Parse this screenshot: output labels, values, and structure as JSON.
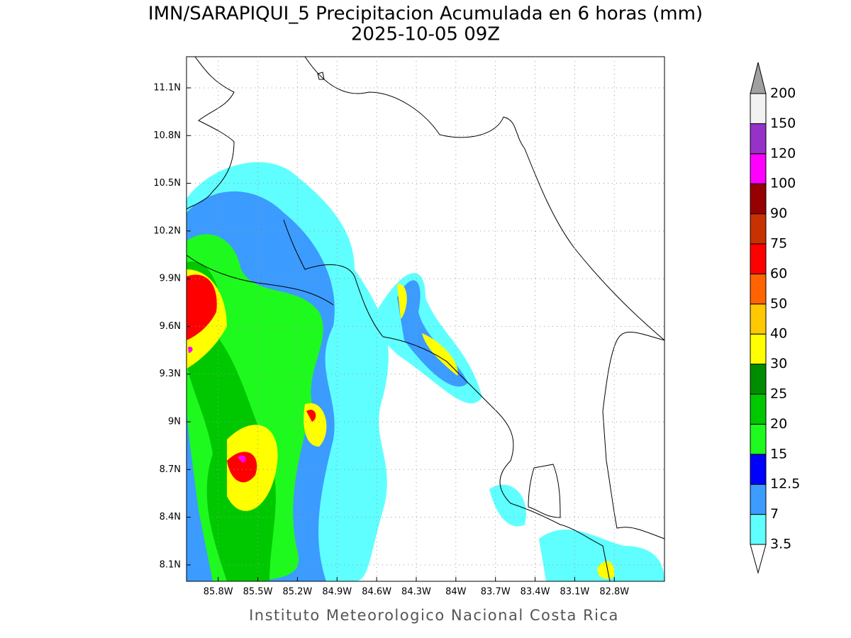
{
  "title": "IMN/SARAPIQUI_5 Precipitacion Acumulada en 6 horas (mm)",
  "subtitle": "2025-10-05 09Z",
  "footer": "Instituto Meteorologico Nacional Costa Rica",
  "map": {
    "xlim": [
      -86.04,
      -82.42
    ],
    "ylim": [
      7.997,
      11.296
    ],
    "xticks": [
      {
        "value": -85.8,
        "label": "85.8W"
      },
      {
        "value": -85.5,
        "label": "85.5W"
      },
      {
        "value": -85.2,
        "label": "85.2W"
      },
      {
        "value": -84.9,
        "label": "84.9W"
      },
      {
        "value": -84.6,
        "label": "84.6W"
      },
      {
        "value": -84.3,
        "label": "84.3W"
      },
      {
        "value": -84,
        "label": "84W"
      },
      {
        "value": -83.7,
        "label": "83.7W"
      },
      {
        "value": -83.4,
        "label": "83.4W"
      },
      {
        "value": -83.1,
        "label": "83.1W"
      },
      {
        "value": -82.8,
        "label": "82.8W"
      }
    ],
    "yticks": [
      {
        "value": 11.1,
        "label": "11.1N"
      },
      {
        "value": 10.8,
        "label": "10.8N"
      },
      {
        "value": 10.5,
        "label": "10.5N"
      },
      {
        "value": 10.2,
        "label": "10.2N"
      },
      {
        "value": 9.9,
        "label": "9.9N"
      },
      {
        "value": 9.6,
        "label": "9.6N"
      },
      {
        "value": 9.3,
        "label": "9.3N"
      },
      {
        "value": 9,
        "label": "9N"
      },
      {
        "value": 8.7,
        "label": "8.7N"
      },
      {
        "value": 8.4,
        "label": "8.4N"
      },
      {
        "value": 8.1,
        "label": "8.1N"
      }
    ],
    "grid": true
  },
  "colorbar": {
    "levels": [
      3.5,
      7,
      12.5,
      15,
      20,
      25,
      30,
      40,
      50,
      60,
      75,
      90,
      100,
      120,
      150,
      200
    ],
    "colors": [
      "#60ffff",
      "#3c9bff",
      "#0000ff",
      "#1efa1e",
      "#00c800",
      "#008c00",
      "#ffff00",
      "#ffc800",
      "#ff6400",
      "#ff0000",
      "#c83200",
      "#960000",
      "#ff00ff",
      "#9632c8",
      "#f2f2f2"
    ],
    "under_color": "#ffffff",
    "over_color": "#a0a0a0"
  }
}
